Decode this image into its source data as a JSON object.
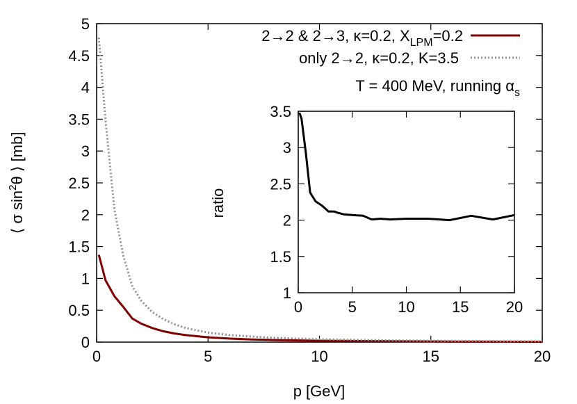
{
  "chart_data": [
    {
      "type": "line",
      "xlabel": "p [GeV]",
      "ylabel": "⟨ σ sin²θ ⟩ [mb]",
      "xlim": [
        0,
        20
      ],
      "ylim": [
        0,
        5
      ],
      "x_ticks": [
        "0",
        "5",
        "10",
        "15",
        "20"
      ],
      "y_ticks": [
        "0",
        "0.5",
        "1",
        "1.5",
        "2",
        "2.5",
        "3",
        "3.5",
        "4",
        "4.5",
        "5"
      ],
      "grid": false,
      "legend_position": "top-right",
      "annotation": "T = 400 MeV, running αs",
      "series": [
        {
          "name": "2→2 & 2→3, κ=0.2, XLPM=0.2",
          "color": "#800000",
          "style": "solid",
          "x": [
            0.1,
            0.4,
            0.8,
            1.2,
            1.6,
            2.0,
            2.5,
            3.0,
            3.5,
            4.0,
            5.0,
            6.0,
            7.0,
            8.0,
            10.0,
            12.0,
            14.0,
            16.0,
            18.0,
            20.0
          ],
          "y": [
            1.37,
            0.97,
            0.72,
            0.55,
            0.37,
            0.29,
            0.22,
            0.17,
            0.135,
            0.11,
            0.075,
            0.055,
            0.042,
            0.033,
            0.022,
            0.016,
            0.012,
            0.009,
            0.007,
            0.006
          ]
        },
        {
          "name": "only 2→2, κ=0.2, K=3.5",
          "color": "#909090",
          "style": "dotted",
          "x": [
            0.1,
            0.4,
            0.8,
            1.2,
            1.6,
            2.0,
            2.5,
            3.0,
            3.5,
            4.0,
            5.0,
            6.0,
            7.0,
            8.0,
            10.0,
            12.0,
            14.0,
            16.0,
            18.0,
            20.0
          ],
          "y": [
            4.78,
            3.48,
            2.08,
            1.35,
            0.88,
            0.65,
            0.47,
            0.36,
            0.28,
            0.22,
            0.15,
            0.11,
            0.085,
            0.068,
            0.045,
            0.033,
            0.024,
            0.019,
            0.014,
            0.012
          ]
        }
      ]
    },
    {
      "type": "line",
      "ylabel": "ratio",
      "xlim": [
        0,
        20
      ],
      "ylim": [
        1,
        3.5
      ],
      "x_ticks": [
        "0",
        "5",
        "10",
        "15",
        "20"
      ],
      "y_ticks": [
        "1",
        "1.5",
        "2",
        "2.5",
        "3",
        "3.5"
      ],
      "series": [
        {
          "color": "#000000",
          "style": "solid",
          "x": [
            0.1,
            0.3,
            0.7,
            1.1,
            1.6,
            2.2,
            2.8,
            3.3,
            3.7,
            4.2,
            5.0,
            6.0,
            6.8,
            7.6,
            8.5,
            10.0,
            12.0,
            14.0,
            16.0,
            18.0,
            20.0
          ],
          "y": [
            3.48,
            3.4,
            2.93,
            2.38,
            2.26,
            2.2,
            2.12,
            2.12,
            2.1,
            2.08,
            2.07,
            2.06,
            2.01,
            2.02,
            2.01,
            2.02,
            2.02,
            2.0,
            2.06,
            2.01,
            2.07
          ]
        }
      ]
    }
  ],
  "legend": {
    "line1_main": "2→2 & 2→3, κ=0.2, X",
    "line1_sub": "LPM",
    "line1_tail": "=0.2",
    "line2": "only 2→2, κ=0.2, K=3.5"
  },
  "annotation": {
    "main": "T = 400 MeV, running α",
    "sub": "s"
  },
  "ylabel_parts": {
    "a": "⟨ σ sin",
    "sup": "2",
    "b": "θ ⟩ [mb]"
  }
}
